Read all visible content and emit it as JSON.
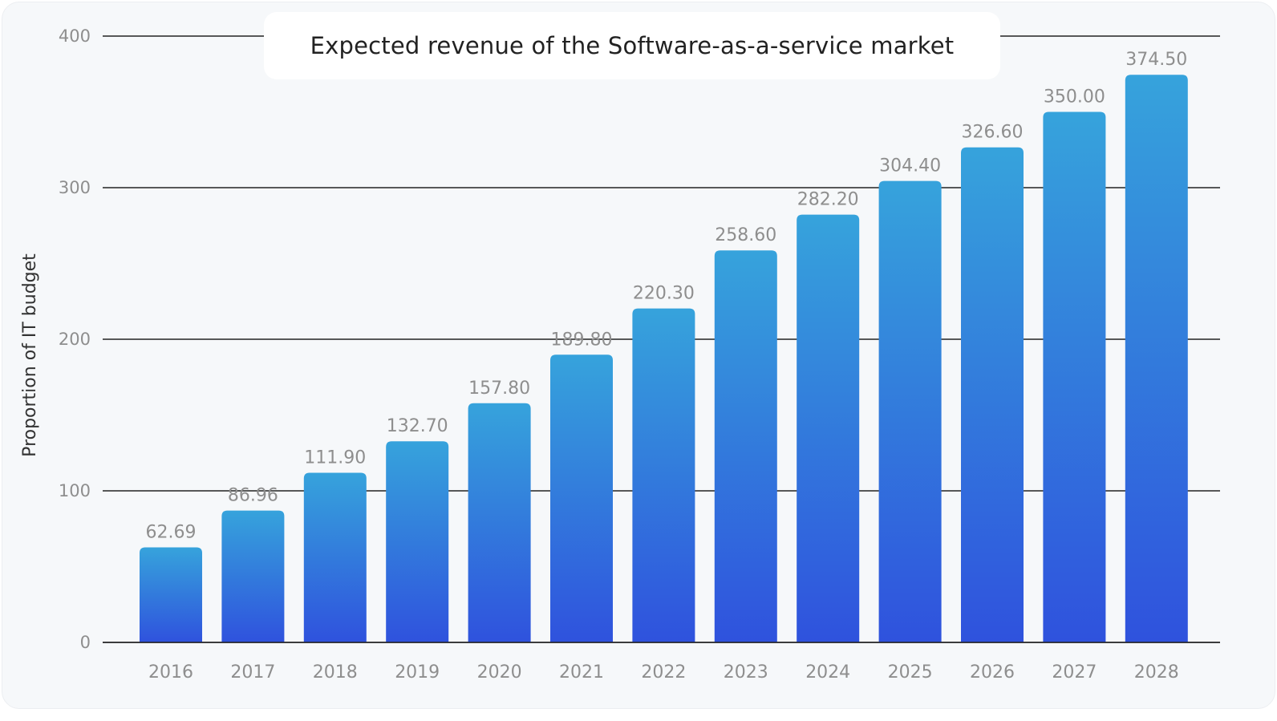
{
  "chart_data": {
    "type": "bar",
    "title": "Expected revenue of the Software-as-a-service market",
    "xlabel": "",
    "ylabel": "Proportion of IT budget",
    "ylim": [
      0,
      400
    ],
    "yticks": [
      0,
      100,
      200,
      300,
      400
    ],
    "grid": true,
    "categories": [
      "2016",
      "2017",
      "2018",
      "2019",
      "2020",
      "2021",
      "2022",
      "2023",
      "2024",
      "2025",
      "2026",
      "2027",
      "2028"
    ],
    "values": [
      62.69,
      86.96,
      111.9,
      132.7,
      157.8,
      189.8,
      220.3,
      258.6,
      282.2,
      304.4,
      326.6,
      350.0,
      374.5
    ],
    "value_labels": [
      "62.69",
      "86.96",
      "111.90",
      "132.70",
      "157.80",
      "189.80",
      "220.30",
      "258.60",
      "282.20",
      "304.40",
      "326.60",
      "350.00",
      "374.50"
    ],
    "colors": {
      "bar_top": "#36a3dc",
      "bar_bottom": "#2f52dd",
      "grid": "#222222"
    }
  }
}
